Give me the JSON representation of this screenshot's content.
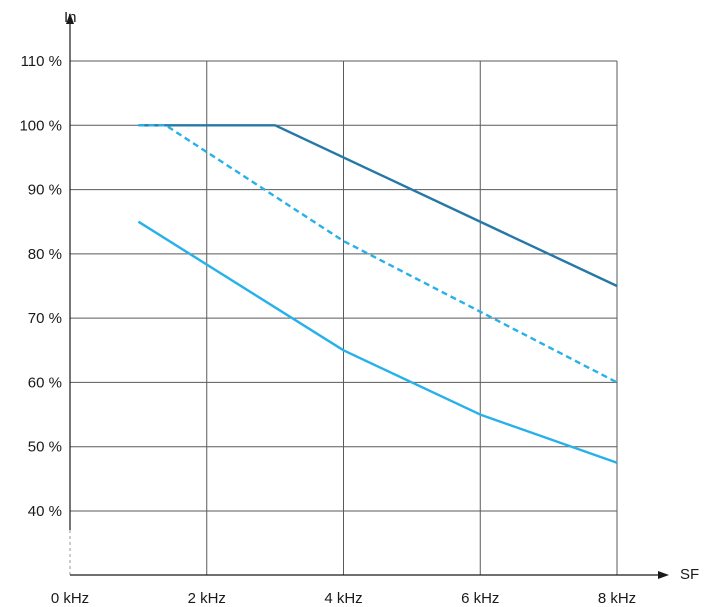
{
  "chart_data": {
    "type": "line",
    "title": "",
    "xlabel": "SF",
    "ylabel": "In",
    "grid": true,
    "legend": "none",
    "xlim": [
      0,
      8
    ],
    "ylim": [
      40,
      110
    ],
    "x_ticks": [
      {
        "value": 0,
        "label": "0 kHz"
      },
      {
        "value": 2,
        "label": "2 kHz"
      },
      {
        "value": 4,
        "label": "4 kHz"
      },
      {
        "value": 6,
        "label": "6 kHz"
      },
      {
        "value": 8,
        "label": "8 kHz"
      }
    ],
    "y_ticks": [
      {
        "value": 40,
        "label": "40 %"
      },
      {
        "value": 50,
        "label": "50 %"
      },
      {
        "value": 60,
        "label": "60 %"
      },
      {
        "value": 70,
        "label": "70 %"
      },
      {
        "value": 80,
        "label": "80 %"
      },
      {
        "value": 90,
        "label": "90 %"
      },
      {
        "value": 100,
        "label": "100 %"
      },
      {
        "value": 110,
        "label": "110 %"
      }
    ],
    "series": [
      {
        "color": "#2678a6",
        "style": "solid",
        "points": [
          [
            1,
            100
          ],
          [
            3,
            100
          ],
          [
            8,
            75
          ]
        ]
      },
      {
        "color": "#27b1ea",
        "style": "dashed",
        "points": [
          [
            1,
            100
          ],
          [
            1.4,
            100
          ],
          [
            4,
            82
          ],
          [
            8,
            60
          ]
        ]
      },
      {
        "color": "#27b1ea",
        "style": "solid",
        "points": [
          [
            1,
            85
          ],
          [
            4,
            65
          ],
          [
            6,
            55
          ],
          [
            8,
            47.5
          ]
        ]
      }
    ]
  }
}
